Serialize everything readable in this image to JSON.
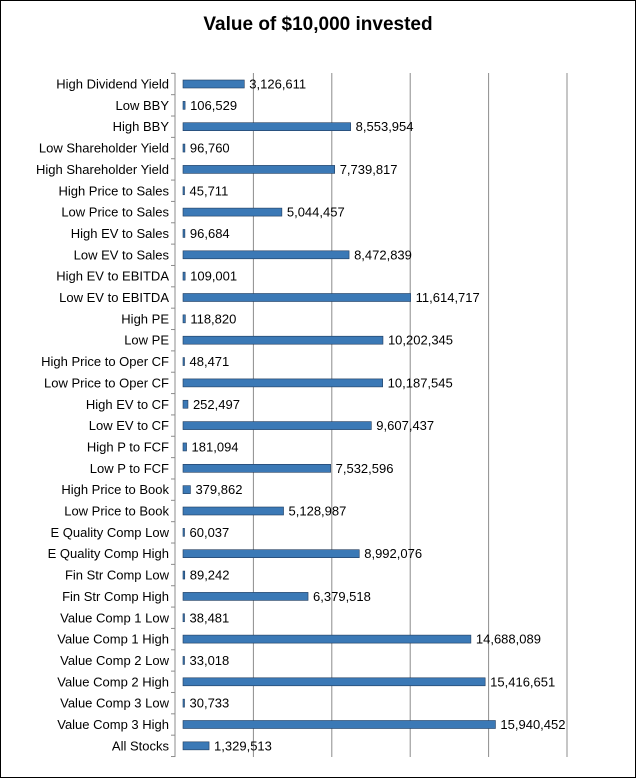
{
  "chart_data": {
    "type": "bar",
    "orientation": "horizontal",
    "title": "Value of $10,000 invested",
    "xlim": [
      0,
      20000000
    ],
    "grid": true,
    "bar_color": "#3b79b6",
    "bar_border_color": "#1f3a5c",
    "categories": [
      "High Dividend Yield",
      "Low BBY",
      "High BBY",
      "Low Shareholder Yield",
      "High Shareholder Yield",
      "High Price to Sales",
      "Low Price to Sales",
      "High EV to Sales",
      "Low EV to Sales",
      "High EV to EBITDA",
      "Low EV to EBITDA",
      "High PE",
      "Low PE",
      "High Price to Oper CF",
      "Low Price to Oper CF",
      "High EV to CF",
      "Low EV to CF",
      "High P to FCF",
      "Low P to FCF",
      "High Price to Book",
      "Low Price to Book",
      "E Quality Comp Low",
      "E Quality Comp High",
      "Fin Str Comp Low",
      "Fin Str Comp High",
      "Value Comp 1 Low",
      "Value Comp 1 High",
      "Value Comp 2 Low",
      "Value Comp 2 High",
      "Value Comp 3 Low",
      "Value Comp 3 High",
      "All Stocks"
    ],
    "values": [
      3126611,
      106529,
      8553954,
      96760,
      7739817,
      45711,
      5044457,
      96684,
      8472839,
      109001,
      11614717,
      118820,
      10202345,
      48471,
      10187545,
      252497,
      9607437,
      181094,
      7532596,
      379862,
      5128987,
      60037,
      8992076,
      89242,
      6379518,
      38481,
      14688089,
      33018,
      15416651,
      30733,
      15940452,
      1329513
    ],
    "data_labels": [
      "3,126,611",
      "106,529",
      "8,553,954",
      "96,760",
      "7,739,817",
      "45,711",
      "5,044,457",
      "96,684",
      "8,472,839",
      "109,001",
      "11,614,717",
      "118,820",
      "10,202,345",
      "48,471",
      "10,187,545",
      "252,497",
      "9,607,437",
      "181,094",
      "7,532,596",
      "379,862",
      "5,128,987",
      "60,037",
      "8,992,076",
      "89,242",
      "6,379,518",
      "38,481",
      "14,688,089",
      "33,018",
      "15,416,651",
      "30,733",
      "15,940,452",
      "1,329,513"
    ]
  }
}
